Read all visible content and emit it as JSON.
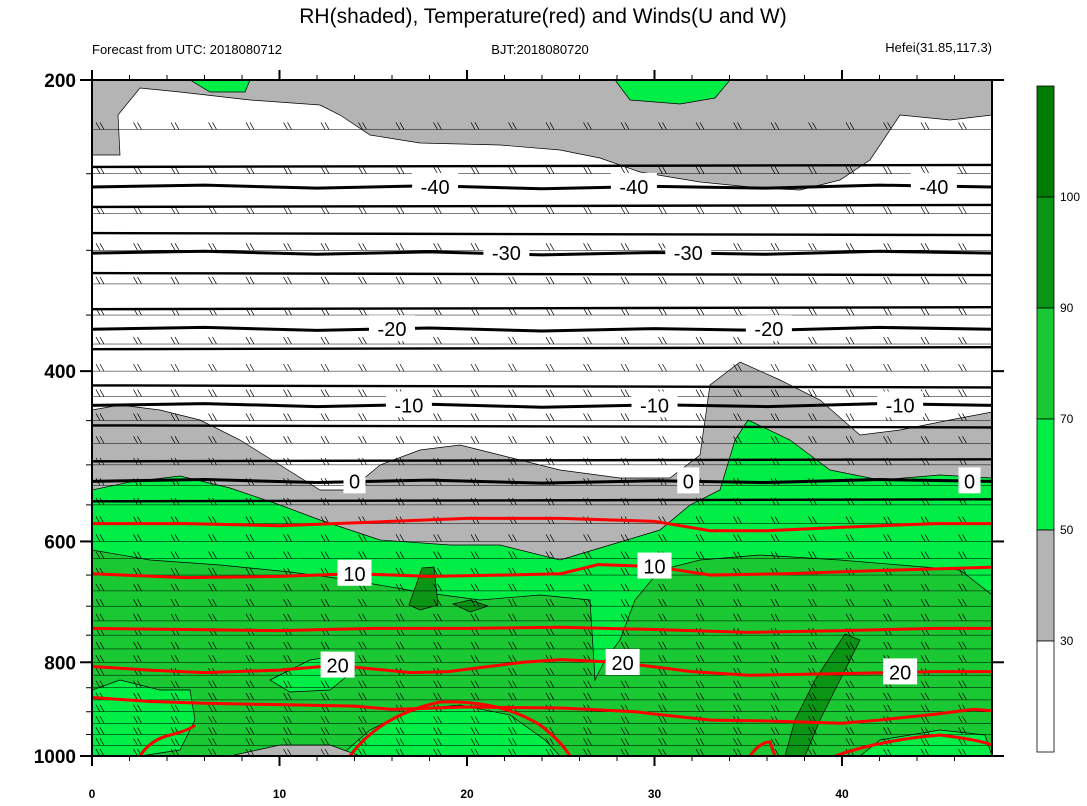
{
  "title": "RH(shaded), Temperature(red) and Winds(U and W)",
  "subtitle_left": "Forecast from UTC: 2018080712",
  "subtitle_center": "BJT:2018080720",
  "subtitle_right": "Hefei(31.85,117.3)",
  "colors": {
    "rh_gray": "#b4b4b4",
    "rh_green_light": "#00ee46",
    "rh_green": "#19c832",
    "rh_green_dark": "#0a9614",
    "rh_green_darkest": "#007d00",
    "temperature_line": "#ff0000",
    "black_isotherm": "#000000"
  },
  "chart_data": {
    "type": "heatmap",
    "x_axis": {
      "range": [
        0,
        48
      ],
      "ticks": [
        0,
        10,
        20,
        30,
        40
      ]
    },
    "y_axis": {
      "scale": "log-pressure",
      "range": [
        1000,
        200
      ],
      "ticks": [
        200,
        400,
        600,
        800,
        1000
      ]
    },
    "colorbar": {
      "levels": [
        30,
        50,
        70,
        90,
        100
      ],
      "colors": [
        "#ffffff",
        "#b4b4b4",
        "#00ee46",
        "#19c832",
        "#0a9614",
        "#007d00"
      ]
    },
    "isotherms_black": [
      {
        "value": -40,
        "label": "-40",
        "pressure": 258,
        "label_x": [
          18.3,
          28.9,
          44.9
        ]
      },
      {
        "value": -30,
        "label": "-30",
        "pressure": 302,
        "label_x": [
          22.1,
          31.8
        ]
      },
      {
        "value": -20,
        "label": "-20",
        "pressure": 362,
        "label_x": [
          16.0,
          36.1
        ]
      },
      {
        "value": -10,
        "label": "-10",
        "pressure": 434,
        "label_x": [
          16.9,
          30.0,
          43.1
        ]
      },
      {
        "value": 0,
        "label": "0",
        "pressure": 520,
        "label_x": [
          14.0,
          31.8,
          46.8
        ]
      }
    ],
    "isotherms_red": [
      {
        "value": 10,
        "label": "10",
        "points": [
          [
            0,
            648
          ],
          [
            5,
            654
          ],
          [
            10,
            652
          ],
          [
            14,
            648
          ],
          [
            18,
            652
          ],
          [
            22,
            650
          ],
          [
            25,
            648
          ],
          [
            27,
            634
          ],
          [
            30,
            637
          ],
          [
            33,
            650
          ],
          [
            37,
            648
          ],
          [
            42,
            643
          ],
          [
            48,
            638
          ]
        ],
        "label_x": [
          14.0,
          30.0
        ]
      },
      {
        "value": 20,
        "label": "20",
        "points": [
          [
            0,
            808
          ],
          [
            3,
            815
          ],
          [
            6,
            820
          ],
          [
            10,
            815
          ],
          [
            13,
            806
          ],
          [
            17,
            820
          ],
          [
            19,
            818
          ],
          [
            23,
            800
          ],
          [
            25,
            795
          ],
          [
            28,
            800
          ],
          [
            32,
            818
          ],
          [
            35,
            825
          ],
          [
            40,
            822
          ],
          [
            45,
            818
          ],
          [
            48,
            818
          ]
        ],
        "label_x": [
          13.1,
          28.3,
          43.1
        ]
      },
      {
        "value": 15,
        "label": "",
        "points": [
          [
            0,
            575
          ],
          [
            5,
            575
          ],
          [
            10,
            578
          ],
          [
            15,
            573
          ],
          [
            20,
            568
          ],
          [
            25,
            568
          ],
          [
            30,
            572
          ],
          [
            33,
            585
          ],
          [
            36,
            585
          ],
          [
            40,
            580
          ],
          [
            45,
            575
          ],
          [
            48,
            575
          ]
        ],
        "label_x": []
      },
      {
        "value": 18,
        "label": "",
        "points": [
          [
            0,
            738
          ],
          [
            5,
            740
          ],
          [
            10,
            742
          ],
          [
            15,
            738
          ],
          [
            20,
            738
          ],
          [
            25,
            736
          ],
          [
            30,
            740
          ],
          [
            35,
            745
          ],
          [
            40,
            742
          ],
          [
            45,
            738
          ],
          [
            48,
            738
          ]
        ],
        "label_x": []
      },
      {
        "value": 22,
        "label": "",
        "points": [
          [
            0,
            870
          ],
          [
            3,
            878
          ],
          [
            6,
            882
          ],
          [
            10,
            885
          ],
          [
            14,
            888
          ],
          [
            16,
            895
          ],
          [
            20,
            890
          ],
          [
            25,
            892
          ],
          [
            29,
            900
          ],
          [
            30,
            905
          ],
          [
            33,
            918
          ],
          [
            36,
            920
          ],
          [
            40,
            925
          ],
          [
            42,
            918
          ],
          [
            45,
            905
          ],
          [
            47,
            895
          ],
          [
            48,
            898
          ]
        ],
        "label_x": []
      }
    ]
  }
}
